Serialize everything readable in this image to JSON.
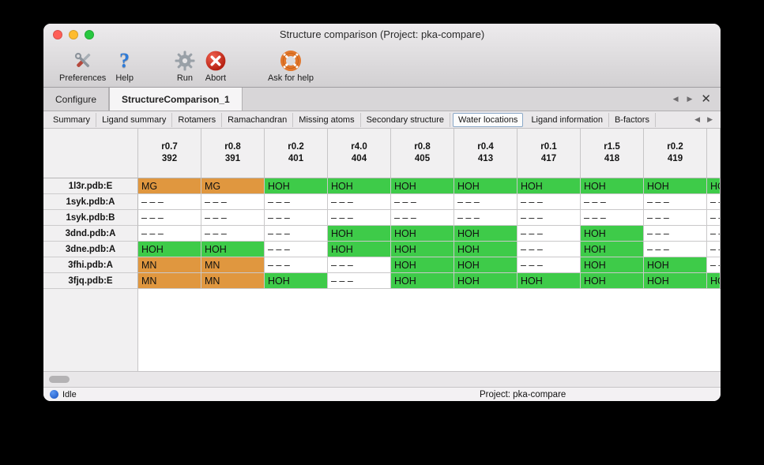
{
  "window": {
    "title": "Structure comparison (Project: pka-compare)"
  },
  "toolbar": {
    "buttons": [
      {
        "label": "Preferences"
      },
      {
        "label": "Help"
      },
      {
        "label": "Run"
      },
      {
        "label": "Abort"
      },
      {
        "label": "Ask for help"
      }
    ]
  },
  "tab_bar": {
    "tabs": [
      {
        "label": "Configure",
        "active": false
      },
      {
        "label": "StructureComparison_1",
        "active": true
      }
    ],
    "prev_icon": "◀",
    "next_icon": "▶",
    "close_icon": "✕"
  },
  "subtab_bar": {
    "tabs": [
      "Summary",
      "Ligand summary",
      "Rotamers",
      "Ramachandran",
      "Missing atoms",
      "Secondary structure",
      "Water locations",
      "Ligand information",
      "B-factors"
    ],
    "selected": "Water locations",
    "prev_icon": "◀",
    "next_icon": "▶"
  },
  "table": {
    "columns": [
      {
        "line1": "r0.7",
        "line2": "392"
      },
      {
        "line1": "r0.8",
        "line2": "391"
      },
      {
        "line1": "r0.2",
        "line2": "401"
      },
      {
        "line1": "r4.0",
        "line2": "404"
      },
      {
        "line1": "r0.8",
        "line2": "405"
      },
      {
        "line1": "r0.4",
        "line2": "413"
      },
      {
        "line1": "r0.1",
        "line2": "417"
      },
      {
        "line1": "r1.5",
        "line2": "418"
      },
      {
        "line1": "r0.2",
        "line2": "419"
      },
      {
        "line1": "",
        "line2": ""
      }
    ],
    "rows": [
      {
        "label": "1l3r.pdb:E",
        "cells": [
          {
            "text": "MG",
            "type": "metal"
          },
          {
            "text": "MG",
            "type": "metal"
          },
          {
            "text": "HOH",
            "type": "water"
          },
          {
            "text": "HOH",
            "type": "water"
          },
          {
            "text": "HOH",
            "type": "water"
          },
          {
            "text": "HOH",
            "type": "water"
          },
          {
            "text": "HOH",
            "type": "water"
          },
          {
            "text": "HOH",
            "type": "water"
          },
          {
            "text": "HOH",
            "type": "water"
          },
          {
            "text": "HOH",
            "type": "water"
          }
        ]
      },
      {
        "label": "1syk.pdb:A",
        "cells": [
          {
            "text": "– – –",
            "type": "none"
          },
          {
            "text": "– – –",
            "type": "none"
          },
          {
            "text": "– – –",
            "type": "none"
          },
          {
            "text": "– – –",
            "type": "none"
          },
          {
            "text": "– – –",
            "type": "none"
          },
          {
            "text": "– – –",
            "type": "none"
          },
          {
            "text": "– – –",
            "type": "none"
          },
          {
            "text": "– – –",
            "type": "none"
          },
          {
            "text": "– – –",
            "type": "none"
          },
          {
            "text": "– – –",
            "type": "none"
          }
        ]
      },
      {
        "label": "1syk.pdb:B",
        "cells": [
          {
            "text": "– – –",
            "type": "none"
          },
          {
            "text": "– – –",
            "type": "none"
          },
          {
            "text": "– – –",
            "type": "none"
          },
          {
            "text": "– – –",
            "type": "none"
          },
          {
            "text": "– – –",
            "type": "none"
          },
          {
            "text": "– – –",
            "type": "none"
          },
          {
            "text": "– – –",
            "type": "none"
          },
          {
            "text": "– – –",
            "type": "none"
          },
          {
            "text": "– – –",
            "type": "none"
          },
          {
            "text": "– – –",
            "type": "none"
          }
        ]
      },
      {
        "label": "3dnd.pdb:A",
        "cells": [
          {
            "text": "– – –",
            "type": "none"
          },
          {
            "text": "– – –",
            "type": "none"
          },
          {
            "text": "– – –",
            "type": "none"
          },
          {
            "text": "HOH",
            "type": "water"
          },
          {
            "text": "HOH",
            "type": "water"
          },
          {
            "text": "HOH",
            "type": "water"
          },
          {
            "text": "– – –",
            "type": "none"
          },
          {
            "text": "HOH",
            "type": "water"
          },
          {
            "text": "– – –",
            "type": "none"
          },
          {
            "text": "– – –",
            "type": "none"
          }
        ]
      },
      {
        "label": "3dne.pdb:A",
        "cells": [
          {
            "text": "HOH",
            "type": "water"
          },
          {
            "text": "HOH",
            "type": "water"
          },
          {
            "text": "– – –",
            "type": "none"
          },
          {
            "text": "HOH",
            "type": "water"
          },
          {
            "text": "HOH",
            "type": "water"
          },
          {
            "text": "HOH",
            "type": "water"
          },
          {
            "text": "– – –",
            "type": "none"
          },
          {
            "text": "HOH",
            "type": "water"
          },
          {
            "text": "– – –",
            "type": "none"
          },
          {
            "text": "– – –",
            "type": "none"
          }
        ]
      },
      {
        "label": "3fhi.pdb:A",
        "cells": [
          {
            "text": "MN",
            "type": "metal"
          },
          {
            "text": "MN",
            "type": "metal"
          },
          {
            "text": "– – –",
            "type": "none"
          },
          {
            "text": "– – –",
            "type": "none"
          },
          {
            "text": "HOH",
            "type": "water"
          },
          {
            "text": "HOH",
            "type": "water"
          },
          {
            "text": "– – –",
            "type": "none"
          },
          {
            "text": "HOH",
            "type": "water"
          },
          {
            "text": "HOH",
            "type": "water"
          },
          {
            "text": "– – –",
            "type": "none"
          }
        ]
      },
      {
        "label": "3fjq.pdb:E",
        "cells": [
          {
            "text": "MN",
            "type": "metal"
          },
          {
            "text": "MN",
            "type": "metal"
          },
          {
            "text": "HOH",
            "type": "water"
          },
          {
            "text": "– – –",
            "type": "none"
          },
          {
            "text": "HOH",
            "type": "water"
          },
          {
            "text": "HOH",
            "type": "water"
          },
          {
            "text": "HOH",
            "type": "water"
          },
          {
            "text": "HOH",
            "type": "water"
          },
          {
            "text": "HOH",
            "type": "water"
          },
          {
            "text": "HOH",
            "type": "water"
          }
        ]
      }
    ]
  },
  "status_bar": {
    "status": "Idle",
    "project": "Project: pka-compare"
  },
  "colors": {
    "water": "#3ecb49",
    "metal": "#e0973f",
    "selected_subtab_border": "#8aa8c8",
    "status_dot": "#2268d0"
  }
}
